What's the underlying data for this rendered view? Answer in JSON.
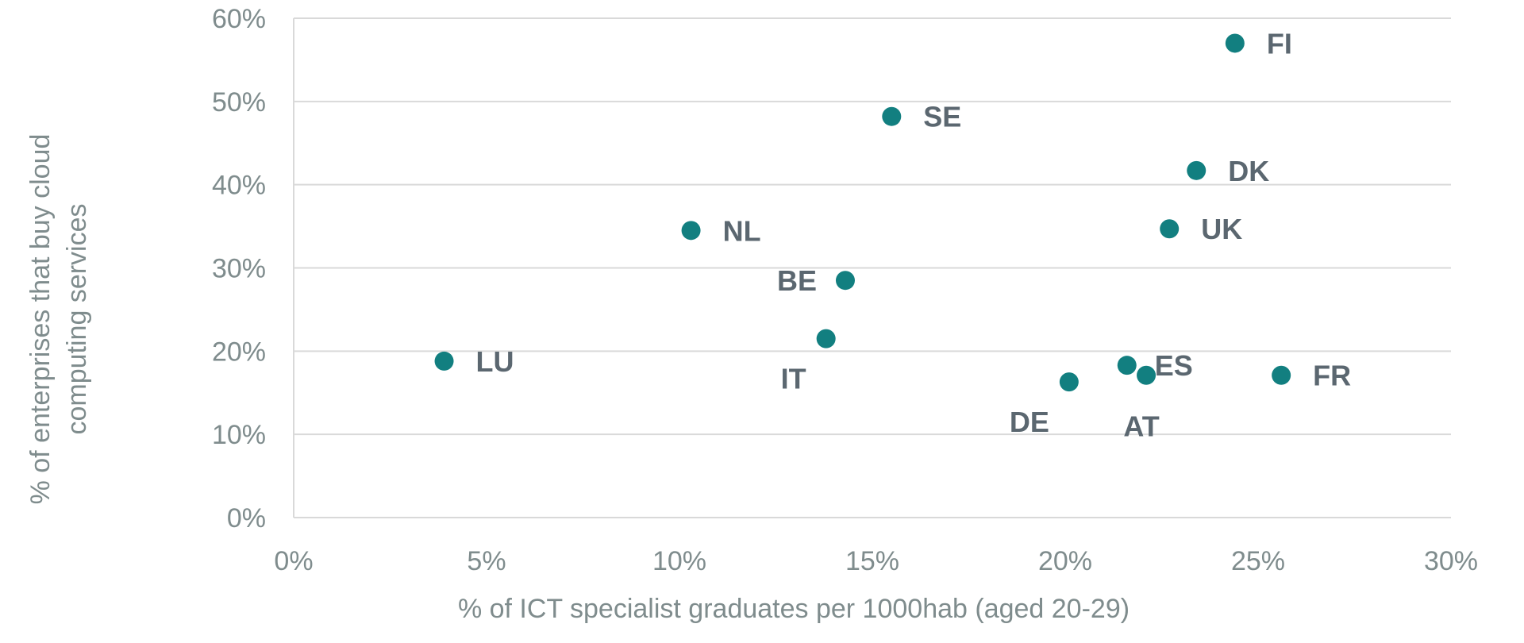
{
  "chart_data": {
    "type": "scatter",
    "xlabel": "% of ICT specialist graduates per 1000hab (aged 20-29)",
    "ylabel_lines": [
      "% of enterprises that buy cloud",
      "computing services"
    ],
    "xlim": [
      0,
      30
    ],
    "ylim": [
      0,
      60
    ],
    "x_ticks": [
      0,
      5,
      10,
      15,
      20,
      25,
      30
    ],
    "y_ticks": [
      0,
      10,
      20,
      30,
      40,
      50,
      60
    ],
    "x_tick_labels": [
      "0%",
      "5%",
      "10%",
      "15%",
      "20%",
      "25%",
      "30%"
    ],
    "y_tick_labels": [
      "0%",
      "10%",
      "20%",
      "30%",
      "40%",
      "50%",
      "60%"
    ],
    "grid": "horizontal",
    "point_color": "#127f80",
    "points": [
      {
        "label": "FI",
        "x": 24.4,
        "y": 57.0,
        "label_pos": "right"
      },
      {
        "label": "SE",
        "x": 15.5,
        "y": 48.2,
        "label_pos": "right"
      },
      {
        "label": "DK",
        "x": 23.4,
        "y": 41.7,
        "label_pos": "right"
      },
      {
        "label": "NL",
        "x": 10.3,
        "y": 34.5,
        "label_pos": "right"
      },
      {
        "label": "UK",
        "x": 22.7,
        "y": 34.7,
        "label_pos": "right"
      },
      {
        "label": "BE",
        "x": 14.3,
        "y": 28.5,
        "label_pos": "left"
      },
      {
        "label": "IT",
        "x": 13.8,
        "y": 21.5,
        "label_pos": "below-left"
      },
      {
        "label": "LU",
        "x": 3.9,
        "y": 18.8,
        "label_pos": "right"
      },
      {
        "label": "ES",
        "x": 21.6,
        "y": 18.3,
        "label_pos": "right-far"
      },
      {
        "label": "AT",
        "x": 22.1,
        "y": 17.1,
        "label_pos": "below"
      },
      {
        "label": "FR",
        "x": 25.6,
        "y": 17.1,
        "label_pos": "right"
      },
      {
        "label": "DE",
        "x": 20.1,
        "y": 16.3,
        "label_pos": "below-left"
      }
    ]
  }
}
